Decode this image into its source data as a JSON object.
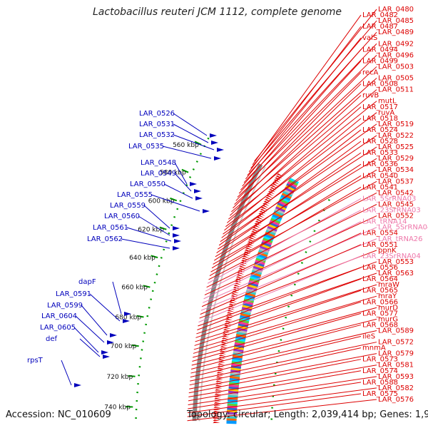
{
  "title": "Lactobacillus reuteri JCM 1112, complete genome",
  "accession_text": "Accession: NC_010609",
  "topology_text": "Topology: circular; Length: 2,039,414 bp; Genes: 1,901",
  "colors": {
    "right_gene": "#dd0000",
    "left_gene": "#0000bb",
    "rna": "#ee77aa",
    "backbone": "#888888",
    "tick": "#009900"
  },
  "kbp_ticks": [
    "560 kbp",
    "580 kbp",
    "600 kbp",
    "620 kbp",
    "640 kbp",
    "660 kbp",
    "680 kbp",
    "700 kbp",
    "720 kbp",
    "740 kbp"
  ],
  "right_labels": [
    {
      "text": "LAR_0480",
      "kind": "gene"
    },
    {
      "text": "LAR_0482",
      "kind": "gene"
    },
    {
      "text": "LAR_0485",
      "kind": "gene"
    },
    {
      "text": "LAR_0487",
      "kind": "gene"
    },
    {
      "text": "LAR_0489",
      "kind": "gene"
    },
    {
      "text": "valS",
      "kind": "gene"
    },
    {
      "text": "LAR_0492",
      "kind": "gene"
    },
    {
      "text": "LAR_0494",
      "kind": "gene"
    },
    {
      "text": "LAR_0496",
      "kind": "gene"
    },
    {
      "text": "LAR_0499",
      "kind": "gene"
    },
    {
      "text": "LAR_0503",
      "kind": "gene"
    },
    {
      "text": "recA",
      "kind": "gene"
    },
    {
      "text": "LAR_0505",
      "kind": "gene"
    },
    {
      "text": "LAR_0508",
      "kind": "gene"
    },
    {
      "text": "LAR_0511",
      "kind": "gene"
    },
    {
      "text": "ruvB",
      "kind": "gene"
    },
    {
      "text": "mutL",
      "kind": "gene"
    },
    {
      "text": "LAR_0517",
      "kind": "gene"
    },
    {
      "text": "ruvA",
      "kind": "gene"
    },
    {
      "text": "LAR_0518",
      "kind": "gene"
    },
    {
      "text": "LAR_0519",
      "kind": "gene"
    },
    {
      "text": "LAR_0524",
      "kind": "gene"
    },
    {
      "text": "LAR_0522",
      "kind": "gene"
    },
    {
      "text": "LAR_0528",
      "kind": "gene"
    },
    {
      "text": "LAR_0525",
      "kind": "gene"
    },
    {
      "text": "LAR_0533",
      "kind": "gene"
    },
    {
      "text": "LAR_0529",
      "kind": "gene"
    },
    {
      "text": "LAR_0536",
      "kind": "gene"
    },
    {
      "text": "LAR_0534",
      "kind": "gene"
    },
    {
      "text": "LAR_0540",
      "kind": "gene"
    },
    {
      "text": "LAR_0537",
      "kind": "gene"
    },
    {
      "text": "LAR_0541",
      "kind": "gene"
    },
    {
      "text": "LAR_0542",
      "kind": "gene"
    },
    {
      "text": "LAR_5SrRNA03",
      "kind": "rna"
    },
    {
      "text": "LAR_0545",
      "kind": "gene"
    },
    {
      "text": "LAR_23SrRNA03",
      "kind": "rna"
    },
    {
      "text": "LAR_0552",
      "kind": "gene"
    },
    {
      "text": "LAR_tRNA14",
      "kind": "rna"
    },
    {
      "text": "LAR_5SrRNA04",
      "kind": "rna"
    },
    {
      "text": "LAR_0554",
      "kind": "gene"
    },
    {
      "text": "LAR_tRNA26",
      "kind": "rna"
    },
    {
      "text": "LAR_0551",
      "kind": "gene"
    },
    {
      "text": "ppnK",
      "kind": "gene"
    },
    {
      "text": "LAR_23SrRNA04",
      "kind": "rna"
    },
    {
      "text": "LAR_0553",
      "kind": "gene"
    },
    {
      "text": "LAR_0556",
      "kind": "gene"
    },
    {
      "text": "LAR_0563",
      "kind": "gene"
    },
    {
      "text": "LAR_0564",
      "kind": "gene"
    },
    {
      "text": "mraW",
      "kind": "gene"
    },
    {
      "text": "LAR_0565",
      "kind": "gene"
    },
    {
      "text": "mraY",
      "kind": "gene"
    },
    {
      "text": "LAR_0566",
      "kind": "gene"
    },
    {
      "text": "murD",
      "kind": "gene"
    },
    {
      "text": "LAR_0577",
      "kind": "gene"
    },
    {
      "text": "murG",
      "kind": "gene"
    },
    {
      "text": "LAR_0568",
      "kind": "gene"
    },
    {
      "text": "LAR_0589",
      "kind": "gene"
    },
    {
      "text": "ileS",
      "kind": "gene"
    },
    {
      "text": "LAR_0572",
      "kind": "gene"
    },
    {
      "text": "mnmA",
      "kind": "gene"
    },
    {
      "text": "LAR_0579",
      "kind": "gene"
    },
    {
      "text": "LAR_0573",
      "kind": "gene"
    },
    {
      "text": "LAR_0581",
      "kind": "gene"
    },
    {
      "text": "LAR_0574",
      "kind": "gene"
    },
    {
      "text": "LAR_0593",
      "kind": "gene"
    },
    {
      "text": "LAR_0588",
      "kind": "gene"
    },
    {
      "text": "LAR_0582",
      "kind": "gene"
    },
    {
      "text": "LAR_0575",
      "kind": "gene"
    },
    {
      "text": "LAR_0576",
      "kind": "gene"
    }
  ],
  "left_labels": [
    "LAR_0526",
    "LAR_0531",
    "LAR_0532",
    "LAR_0535",
    "LAR_0548",
    "LAR_0549",
    "LAR_0550",
    "LAR_0555",
    "LAR_0559",
    "LAR_0560",
    "LAR_0561",
    "LAR_0562",
    "dapF",
    "LAR_0591",
    "LAR_0599",
    "LAR_0604",
    "LAR_0605",
    "def",
    "rpsT"
  ]
}
